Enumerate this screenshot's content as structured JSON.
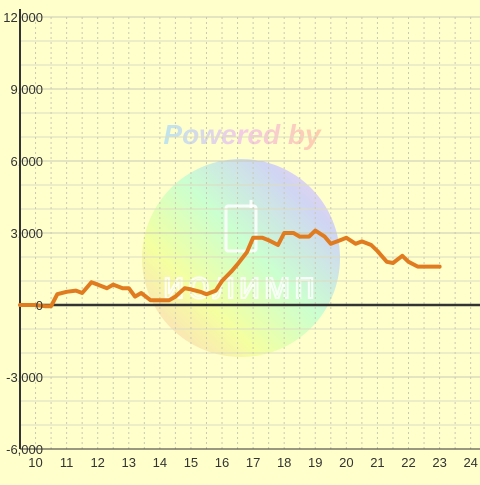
{
  "watermark": {
    "text": "Powered by",
    "logo_text": "иолимп"
  },
  "colors": {
    "background": "#ffffcc",
    "grid_major": "#c9c9b3",
    "grid_minor": "#dcdcc0",
    "axis": "#333333",
    "line": "#e07b1f",
    "tick_text": "#333333"
  },
  "chart_data": {
    "type": "line",
    "title": "",
    "xlabel": "",
    "ylabel": "",
    "grid": true,
    "xlim": [
      9.5,
      24.3
    ],
    "ylim": [
      -6000,
      12000
    ],
    "x_ticks": [
      10,
      11,
      12,
      13,
      14,
      15,
      16,
      17,
      18,
      19,
      20,
      21,
      22,
      23,
      24
    ],
    "x_tick_labels": [
      "10",
      "11",
      "12",
      "13",
      "14",
      "15",
      "16",
      "17",
      "18",
      "19",
      "20",
      "21",
      "22",
      "23",
      "24"
    ],
    "y_ticks": [
      -6000,
      -3000,
      0,
      3000,
      6000,
      9000,
      12000
    ],
    "y_tick_labels": [
      "-6,000",
      "-3,000",
      "0",
      "3,000",
      "6,000",
      "9,000",
      "12,000"
    ],
    "series": [
      {
        "x": [
          9.5,
          10.0,
          10.3,
          10.5,
          10.7,
          11.0,
          11.3,
          11.5,
          11.8,
          12.0,
          12.3,
          12.5,
          12.8,
          13.0,
          13.2,
          13.4,
          13.7,
          14.0,
          14.3,
          14.5,
          14.8,
          15.0,
          15.3,
          15.5,
          15.8,
          16.0,
          16.3,
          16.5,
          16.8,
          17.0,
          17.3,
          17.5,
          17.8,
          18.0,
          18.3,
          18.5,
          18.8,
          19.0,
          19.3,
          19.5,
          19.8,
          20.0,
          20.3,
          20.5,
          20.8,
          21.0,
          21.3,
          21.5,
          21.8,
          22.0,
          22.3,
          22.5,
          22.8,
          23.0
        ],
        "y": [
          0,
          0,
          -50,
          -50,
          450,
          550,
          600,
          500,
          950,
          850,
          700,
          850,
          700,
          700,
          350,
          500,
          200,
          200,
          200,
          350,
          700,
          650,
          550,
          450,
          600,
          1000,
          1400,
          1700,
          2200,
          2800,
          2800,
          2700,
          2500,
          3000,
          3000,
          2850,
          2850,
          3100,
          2850,
          2550,
          2700,
          2800,
          2550,
          2650,
          2500,
          2250,
          1800,
          1750,
          2050,
          1800,
          1600,
          1600,
          1600,
          1600
        ]
      }
    ]
  }
}
